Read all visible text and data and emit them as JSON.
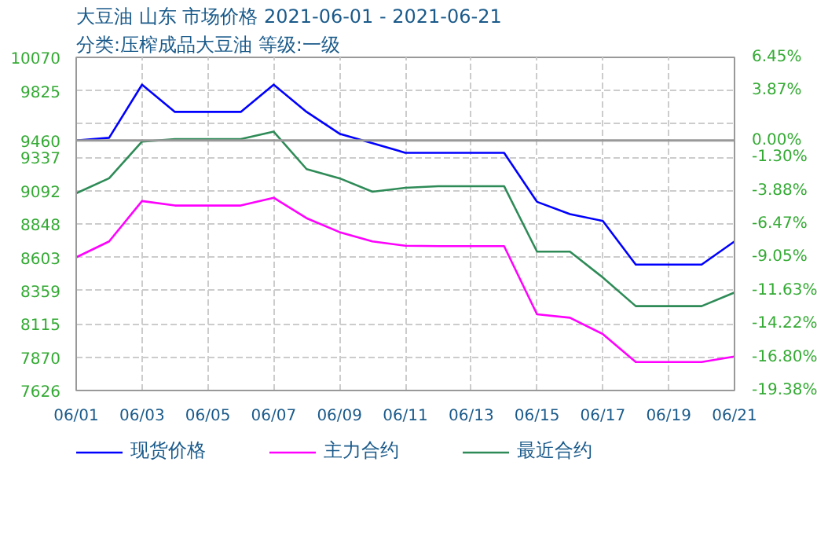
{
  "chart_data": {
    "type": "line",
    "title": "大豆油 山东 市场价格 2021-06-01 - 2021-06-21",
    "subtitle": "分类:压榨成品大豆油 等级:一级",
    "x": [
      "2021-06-01",
      "2021-06-02",
      "2021-06-03",
      "2021-06-04",
      "2021-06-05",
      "2021-06-06",
      "2021-06-07",
      "2021-06-08",
      "2021-06-09",
      "2021-06-10",
      "2021-06-11",
      "2021-06-12",
      "2021-06-13",
      "2021-06-14",
      "2021-06-15",
      "2021-06-16",
      "2021-06-17",
      "2021-06-18",
      "2021-06-19",
      "2021-06-20",
      "2021-06-21"
    ],
    "series": [
      {
        "name": "现货价格",
        "color": "#0000ff",
        "values": [
          9460,
          9480,
          9870,
          9670,
          9670,
          9670,
          9870,
          9670,
          9510,
          9440,
          9370,
          9370,
          9370,
          9370,
          9010,
          8920,
          8870,
          8550,
          8550,
          8550,
          8720
        ]
      },
      {
        "name": "主力合约",
        "color": "#ff00ff",
        "values": [
          8603,
          8720,
          9016,
          8983,
          8983,
          8983,
          9040,
          8890,
          8788,
          8720,
          8688,
          8685,
          8685,
          8685,
          8185,
          8160,
          8040,
          7835,
          7835,
          7835,
          7875
        ]
      },
      {
        "name": "最近合约",
        "color": "#2e8b57",
        "values": [
          9073,
          9183,
          9452,
          9470,
          9470,
          9470,
          9525,
          9250,
          9183,
          9084,
          9113,
          9125,
          9125,
          9125,
          8645,
          8645,
          8455,
          8245,
          8245,
          8245,
          8345
        ]
      }
    ],
    "xlim": [
      "2021-06-01",
      "2021-06-21"
    ],
    "xticks": [
      {
        "value": "2021-06-01",
        "label": "06/01"
      },
      {
        "value": "2021-06-03",
        "label": "06/03"
      },
      {
        "value": "2021-06-05",
        "label": "06/05"
      },
      {
        "value": "2021-06-07",
        "label": "06/07"
      },
      {
        "value": "2021-06-09",
        "label": "06/09"
      },
      {
        "value": "2021-06-11",
        "label": "06/11"
      },
      {
        "value": "2021-06-13",
        "label": "06/13"
      },
      {
        "value": "2021-06-15",
        "label": "06/15"
      },
      {
        "value": "2021-06-17",
        "label": "06/17"
      },
      {
        "value": "2021-06-19",
        "label": "06/19"
      },
      {
        "value": "2021-06-21",
        "label": "06/21"
      }
    ],
    "ylim": [
      7626,
      10070
    ],
    "yticks": [
      7626,
      7870,
      8115,
      8359,
      8603,
      8848,
      9092,
      9337,
      9460,
      {
        "value": 9581,
        "label": null
      },
      9825,
      10070
    ],
    "y2lim": [
      -19.38,
      6.45
    ],
    "y2ticks": [
      {
        "value": -19.38,
        "label": "-19.38%"
      },
      {
        "value": -16.8,
        "label": "-16.80%"
      },
      {
        "value": -14.22,
        "label": "-14.22%"
      },
      {
        "value": -11.63,
        "label": "-11.63%"
      },
      {
        "value": -9.05,
        "label": "-9.05%"
      },
      {
        "value": -6.47,
        "label": "-6.47%"
      },
      {
        "value": -3.88,
        "label": "-3.88%"
      },
      {
        "value": -1.3,
        "label": "-1.30%"
      },
      {
        "value": 0,
        "label": "0.00%"
      },
      {
        "value": 1.29,
        "label": null
      },
      {
        "value": 3.87,
        "label": "3.87%"
      },
      {
        "value": 6.45,
        "label": "6.45%"
      }
    ],
    "ref_lines": [
      {
        "axis": "y",
        "value": 9460,
        "label": null,
        "color": "#999999"
      }
    ],
    "grid": true,
    "legend": "bottom",
    "marker": "none",
    "line_style": "solid"
  }
}
